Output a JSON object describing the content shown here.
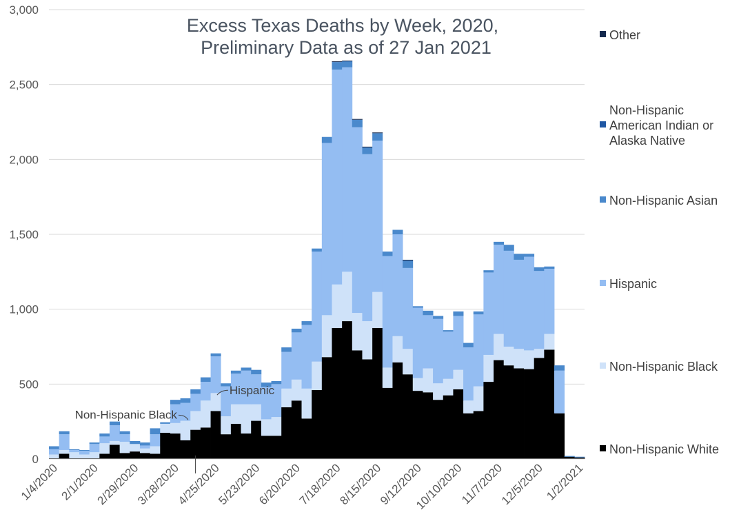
{
  "chart_data": {
    "type": "bar",
    "stacked": true,
    "title": "Excess Texas Deaths by Week, 2020,",
    "subtitle": "Preliminary Data as of 27 Jan 2021",
    "xlabel": "",
    "ylabel": "",
    "ylim": [
      0,
      3000
    ],
    "yticks": [
      "0",
      "500",
      "1,000",
      "1,500",
      "2,000",
      "2,500",
      "3,000"
    ],
    "grid": true,
    "legend_position": "right",
    "x_tick_labels": [
      "1/4/2020",
      "2/1/2020",
      "2/29/2020",
      "3/28/2020",
      "4/25/2020",
      "5/23/2020",
      "6/20/2020",
      "7/18/2020",
      "8/15/2020",
      "9/12/2020",
      "10/10/2020",
      "11/7/2020",
      "12/5/2020",
      "1/2/2021"
    ],
    "x_tick_every": 4,
    "series": [
      {
        "name": "Non-Hispanic White",
        "color": "#000000",
        "values": [
          5,
          35,
          5,
          5,
          5,
          35,
          95,
          40,
          50,
          40,
          35,
          175,
          170,
          125,
          195,
          210,
          320,
          165,
          235,
          170,
          255,
          155,
          155,
          345,
          390,
          270,
          460,
          680,
          875,
          920,
          725,
          665,
          875,
          475,
          645,
          565,
          455,
          445,
          395,
          425,
          465,
          305,
          320,
          515,
          660,
          625,
          605,
          600,
          675,
          730,
          305,
          15,
          10
        ]
      },
      {
        "name": "Non-Hispanic Black",
        "color": "#cfe2f9",
        "values": [
          25,
          25,
          40,
          25,
          40,
          70,
          25,
          75,
          50,
          30,
          50,
          60,
          70,
          130,
          125,
          180,
          120,
          120,
          130,
          195,
          110,
          110,
          125,
          125,
          140,
          200,
          190,
          280,
          290,
          330,
          250,
          255,
          240,
          135,
          175,
          170,
          85,
          160,
          110,
          110,
          130,
          85,
          165,
          180,
          175,
          125,
          130,
          125,
          60,
          105,
          0,
          0,
          0
        ]
      },
      {
        "name": "Hispanic",
        "color": "#94bdf2",
        "values": [
          35,
          105,
          15,
          25,
          55,
          45,
          105,
          50,
          0,
          20,
          80,
          0,
          125,
          120,
          115,
          125,
          245,
          200,
          205,
          225,
          200,
          215,
          220,
          245,
          315,
          425,
          735,
          1150,
          1435,
          1365,
          1240,
          1115,
          1010,
          745,
          680,
          540,
          470,
          355,
          430,
          315,
          360,
          355,
          480,
          550,
          595,
          640,
          595,
          625,
          520,
          435,
          285,
          0,
          0
        ]
      },
      {
        "name": "Non-Hispanic Asian",
        "color": "#4a89cc",
        "values": [
          20,
          20,
          5,
          5,
          10,
          20,
          25,
          20,
          20,
          20,
          40,
          10,
          30,
          30,
          30,
          30,
          20,
          20,
          20,
          20,
          30,
          30,
          20,
          30,
          25,
          25,
          20,
          40,
          50,
          40,
          50,
          45,
          50,
          30,
          30,
          50,
          10,
          30,
          20,
          10,
          30,
          30,
          20,
          15,
          20,
          40,
          40,
          20,
          25,
          15,
          35,
          5,
          5
        ]
      },
      {
        "name": "Non-Hispanic American Indian or Alaska Native",
        "color": "#1f57a3",
        "values": [
          0,
          0,
          0,
          0,
          0,
          0,
          0,
          0,
          0,
          0,
          0,
          0,
          0,
          0,
          0,
          0,
          0,
          0,
          0,
          0,
          0,
          0,
          0,
          0,
          0,
          0,
          0,
          0,
          0,
          0,
          0,
          0,
          0,
          0,
          0,
          0,
          0,
          0,
          0,
          0,
          0,
          0,
          0,
          0,
          0,
          0,
          0,
          0,
          0,
          0,
          0,
          0,
          0
        ]
      },
      {
        "name": "Other",
        "color": "#14284d",
        "values": [
          0,
          0,
          0,
          0,
          0,
          0,
          0,
          0,
          0,
          0,
          0,
          0,
          0,
          0,
          0,
          0,
          0,
          0,
          0,
          0,
          0,
          0,
          0,
          0,
          0,
          0,
          0,
          0,
          5,
          5,
          5,
          5,
          5,
          0,
          0,
          5,
          0,
          0,
          0,
          0,
          0,
          0,
          0,
          0,
          0,
          0,
          0,
          0,
          0,
          0,
          0,
          0,
          0
        ]
      }
    ],
    "annotations": [
      {
        "text": "Hispanic",
        "week_index": 16,
        "value": 450
      },
      {
        "text": "Non-Hispanic Black",
        "week_index": 13,
        "value": 270
      },
      {
        "text": "",
        "week_index": 14,
        "value": 5
      }
    ]
  }
}
